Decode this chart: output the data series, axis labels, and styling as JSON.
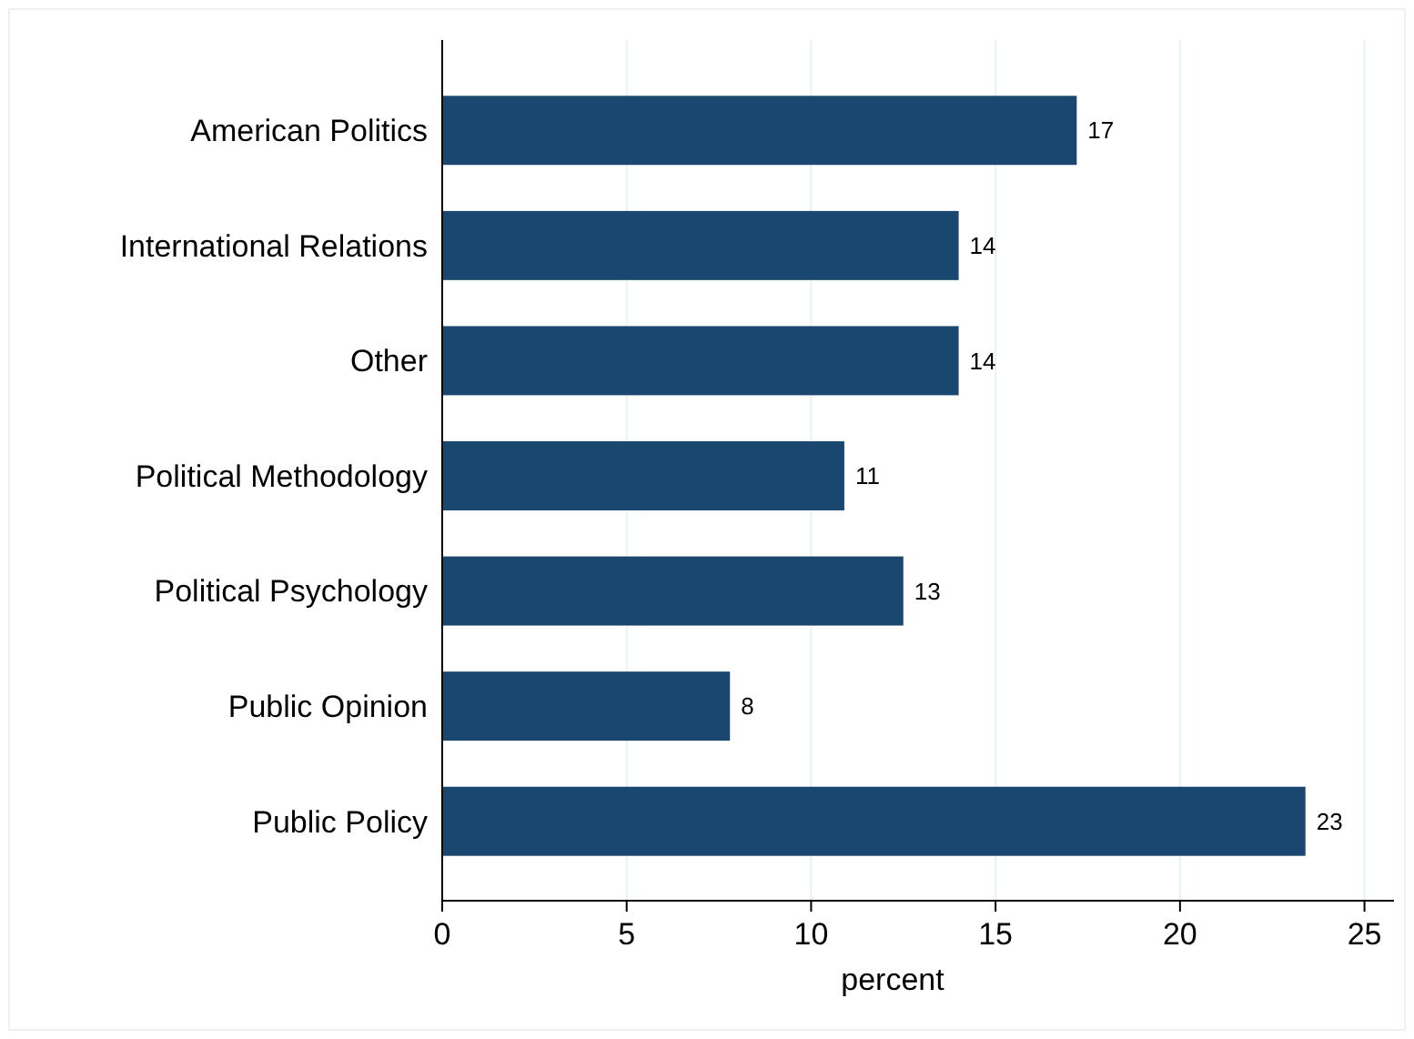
{
  "chart_data": {
    "type": "bar",
    "orientation": "horizontal",
    "xlabel": "percent",
    "categories": [
      "American Politics",
      "International Relations",
      "Other",
      "Political Methodology",
      "Political Psychology",
      "Public Opinion",
      "Public Policy"
    ],
    "values": [
      17.2,
      14.0,
      14.0,
      10.9,
      12.5,
      7.8,
      23.4
    ],
    "value_labels": [
      "17",
      "14",
      "14",
      "11",
      "13",
      "8",
      "23"
    ],
    "color": "#1a476f",
    "xlim": [
      0,
      25.8
    ],
    "xticks": [
      0,
      5,
      10,
      15,
      20,
      25
    ],
    "grid": "x"
  }
}
